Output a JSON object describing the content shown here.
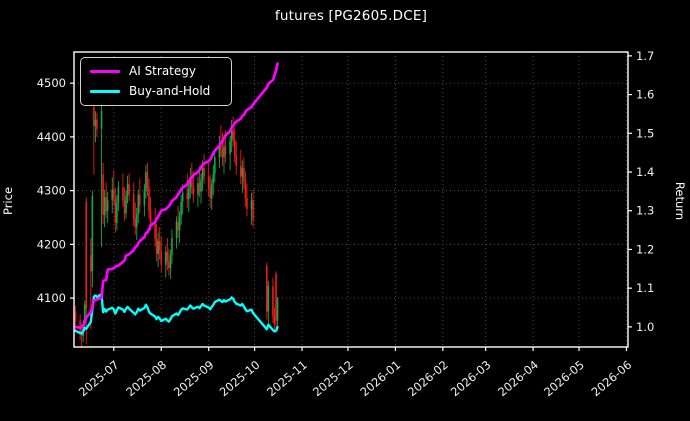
{
  "window": {
    "title": "futures [PG2605.DCE]"
  },
  "chart_data": {
    "type": "candlestick+line",
    "title": "futures [PG2605.DCE]",
    "background": "#000000",
    "grid": true,
    "legend": {
      "position": "upper-left",
      "entries": [
        "AI Strategy",
        "Buy-and-Hold"
      ]
    },
    "colors": {
      "up": "#0cab4e",
      "down": "#f21b1b",
      "ai_strategy": "#ff00ff",
      "buy_and_hold": "#00ffff",
      "axis": "#ffffff",
      "grid": "#5f5f5f",
      "tick_text": "#f0f0f0"
    },
    "left_axis": {
      "label": "Price",
      "min": 4009,
      "max": 4558,
      "ticks": [
        4100,
        4200,
        4300,
        4400,
        4500
      ]
    },
    "right_axis": {
      "label": "Return",
      "min": 0.948,
      "max": 1.71,
      "ticks": [
        1.0,
        1.1,
        1.2,
        1.3,
        1.4,
        1.5,
        1.6,
        1.7
      ]
    },
    "x_axis": {
      "min": "2025-06-05",
      "max": "2026-06-02",
      "tick_dates": [
        "2025-07-01",
        "2025-08-01",
        "2025-09-01",
        "2025-10-01",
        "2025-11-01",
        "2025-12-01",
        "2026-01-01",
        "2026-02-01",
        "2026-03-01",
        "2026-04-01",
        "2026-05-01",
        "2026-06-01"
      ],
      "tick_labels": [
        "2025-07",
        "2025-08",
        "2025-09",
        "2025-10",
        "2025-11",
        "2025-12",
        "2026-01",
        "2026-02",
        "2026-03",
        "2026-04",
        "2026-05",
        "2026-06"
      ]
    },
    "candles": [
      [
        "2025-06-06",
        4075,
        4085,
        4040,
        4058
      ],
      [
        "2025-06-09",
        4058,
        4070,
        4022,
        4034
      ],
      [
        "2025-06-10",
        4034,
        4052,
        4008,
        4030
      ],
      [
        "2025-06-11",
        4030,
        4060,
        4018,
        4052
      ],
      [
        "2025-06-12",
        4052,
        4095,
        4040,
        4088
      ],
      [
        "2025-06-13",
        4280,
        4288,
        4015,
        4080
      ],
      [
        "2025-06-16",
        4180,
        4212,
        4042,
        4150
      ],
      [
        "2025-06-17",
        4150,
        4300,
        4120,
        4290
      ],
      [
        "2025-06-18",
        4455,
        4460,
        4330,
        4420
      ],
      [
        "2025-06-19",
        4420,
        4448,
        4390,
        4432
      ],
      [
        "2025-06-20",
        4432,
        4445,
        4400,
        4415
      ],
      [
        "2025-06-23",
        4415,
        4465,
        4195,
        4448
      ],
      [
        "2025-06-24",
        4330,
        4352,
        4238,
        4255
      ],
      [
        "2025-06-25",
        4255,
        4302,
        4232,
        4288
      ],
      [
        "2025-06-26",
        4288,
        4315,
        4248,
        4262
      ],
      [
        "2025-06-27",
        4262,
        4298,
        4240,
        4282
      ],
      [
        "2025-06-30",
        4282,
        4325,
        4258,
        4302
      ],
      [
        "2025-07-01",
        4302,
        4338,
        4272,
        4286
      ],
      [
        "2025-07-02",
        4286,
        4305,
        4222,
        4240
      ],
      [
        "2025-07-03",
        4240,
        4292,
        4226,
        4278
      ],
      [
        "2025-07-04",
        4278,
        4318,
        4262,
        4306
      ],
      [
        "2025-07-07",
        4306,
        4332,
        4270,
        4282
      ],
      [
        "2025-07-08",
        4282,
        4306,
        4244,
        4258
      ],
      [
        "2025-07-09",
        4258,
        4300,
        4248,
        4290
      ],
      [
        "2025-07-10",
        4290,
        4328,
        4276,
        4312
      ],
      [
        "2025-07-11",
        4312,
        4332,
        4280,
        4294
      ],
      [
        "2025-07-14",
        4294,
        4315,
        4234,
        4248
      ],
      [
        "2025-07-15",
        4248,
        4278,
        4218,
        4232
      ],
      [
        "2025-07-16",
        4232,
        4268,
        4208,
        4256
      ],
      [
        "2025-07-17",
        4256,
        4302,
        4240,
        4292
      ],
      [
        "2025-07-18",
        4292,
        4322,
        4258,
        4272
      ],
      [
        "2025-07-21",
        4272,
        4312,
        4252,
        4300
      ],
      [
        "2025-07-22",
        4300,
        4348,
        4286,
        4334
      ],
      [
        "2025-07-23",
        4334,
        4352,
        4290,
        4306
      ],
      [
        "2025-07-24",
        4306,
        4322,
        4248,
        4262
      ],
      [
        "2025-07-25",
        4262,
        4288,
        4226,
        4240
      ],
      [
        "2025-07-28",
        4240,
        4268,
        4196,
        4210
      ],
      [
        "2025-07-29",
        4210,
        4238,
        4168,
        4182
      ],
      [
        "2025-07-30",
        4182,
        4222,
        4158,
        4206
      ],
      [
        "2025-07-31",
        4206,
        4232,
        4172,
        4188
      ],
      [
        "2025-08-01",
        4188,
        4214,
        4148,
        4162
      ],
      [
        "2025-08-04",
        4162,
        4198,
        4138,
        4186
      ],
      [
        "2025-08-05",
        4186,
        4212,
        4152,
        4168
      ],
      [
        "2025-08-06",
        4168,
        4192,
        4142,
        4156
      ],
      [
        "2025-08-07",
        4156,
        4190,
        4136,
        4180
      ],
      [
        "2025-08-08",
        4180,
        4228,
        4164,
        4212
      ],
      [
        "2025-08-11",
        4212,
        4252,
        4192,
        4242
      ],
      [
        "2025-08-12",
        4242,
        4272,
        4212,
        4226
      ],
      [
        "2025-08-13",
        4226,
        4262,
        4202,
        4252
      ],
      [
        "2025-08-14",
        4252,
        4292,
        4236,
        4280
      ],
      [
        "2025-08-15",
        4280,
        4312,
        4256,
        4296
      ],
      [
        "2025-08-18",
        4296,
        4332,
        4268,
        4284
      ],
      [
        "2025-08-19",
        4284,
        4316,
        4260,
        4304
      ],
      [
        "2025-08-20",
        4304,
        4342,
        4286,
        4326
      ],
      [
        "2025-08-21",
        4326,
        4352,
        4294,
        4308
      ],
      [
        "2025-08-22",
        4308,
        4336,
        4278,
        4292
      ],
      [
        "2025-08-25",
        4292,
        4326,
        4270,
        4314
      ],
      [
        "2025-08-26",
        4314,
        4346,
        4288,
        4298
      ],
      [
        "2025-08-27",
        4298,
        4332,
        4276,
        4320
      ],
      [
        "2025-08-28",
        4320,
        4356,
        4300,
        4342
      ],
      [
        "2025-08-29",
        4342,
        4368,
        4312,
        4326
      ],
      [
        "2025-09-01",
        4326,
        4352,
        4290,
        4304
      ],
      [
        "2025-09-02",
        4304,
        4330,
        4268,
        4286
      ],
      [
        "2025-09-03",
        4286,
        4322,
        4264,
        4312
      ],
      [
        "2025-09-04",
        4312,
        4348,
        4292,
        4332
      ],
      [
        "2025-09-05",
        4332,
        4372,
        4316,
        4362
      ],
      [
        "2025-09-08",
        4362,
        4402,
        4342,
        4388
      ],
      [
        "2025-09-09",
        4388,
        4422,
        4362,
        4376
      ],
      [
        "2025-09-10",
        4376,
        4408,
        4346,
        4362
      ],
      [
        "2025-09-11",
        4362,
        4398,
        4332,
        4382
      ],
      [
        "2025-09-12",
        4382,
        4412,
        4352,
        4368
      ],
      [
        "2025-09-15",
        4368,
        4402,
        4338,
        4392
      ],
      [
        "2025-09-16",
        4392,
        4432,
        4372,
        4412
      ],
      [
        "2025-09-17",
        4412,
        4438,
        4382,
        4396
      ],
      [
        "2025-09-18",
        4396,
        4418,
        4352,
        4366
      ],
      [
        "2025-09-19",
        4366,
        4392,
        4330,
        4346
      ],
      [
        "2025-09-22",
        4346,
        4376,
        4312,
        4326
      ],
      [
        "2025-09-23",
        4326,
        4356,
        4296,
        4342
      ],
      [
        "2025-09-24",
        4342,
        4362,
        4302,
        4316
      ],
      [
        "2025-09-25",
        4316,
        4336,
        4270,
        4286
      ],
      [
        "2025-09-26",
        4286,
        4312,
        4252,
        4266
      ],
      [
        "2025-09-29",
        4266,
        4296,
        4236,
        4282
      ],
      [
        "2025-09-30",
        4282,
        4302,
        4232,
        4246
      ],
      [
        "2025-10-09",
        4160,
        4166,
        4060,
        4075
      ],
      [
        "2025-10-10",
        4075,
        4132,
        4046,
        4122
      ],
      [
        "2025-10-13",
        4122,
        4138,
        4054,
        4066
      ],
      [
        "2025-10-14",
        4066,
        4082,
        4040,
        4052
      ],
      [
        "2025-10-15",
        4145,
        4150,
        4042,
        4058
      ],
      [
        "2025-10-16",
        4058,
        4102,
        4040,
        4098
      ]
    ],
    "series": [
      {
        "name": "AI Strategy",
        "color": "#ff00ff",
        "axis": "return",
        "points": [
          [
            "2025-06-06",
            1.0
          ],
          [
            "2025-06-09",
            0.998
          ],
          [
            "2025-06-10",
            1.0
          ],
          [
            "2025-06-11",
            1.004
          ],
          [
            "2025-06-12",
            1.012
          ],
          [
            "2025-06-13",
            1.024
          ],
          [
            "2025-06-16",
            1.038
          ],
          [
            "2025-06-17",
            1.052
          ],
          [
            "2025-06-18",
            1.068
          ],
          [
            "2025-06-19",
            1.07
          ],
          [
            "2025-06-20",
            1.071
          ],
          [
            "2025-06-23",
            1.075
          ],
          [
            "2025-06-24",
            1.118
          ],
          [
            "2025-06-25",
            1.12
          ],
          [
            "2025-06-26",
            1.121
          ],
          [
            "2025-06-27",
            1.148
          ],
          [
            "2025-06-30",
            1.15
          ],
          [
            "2025-07-01",
            1.152
          ],
          [
            "2025-07-02",
            1.155
          ],
          [
            "2025-07-03",
            1.158
          ],
          [
            "2025-07-04",
            1.158
          ],
          [
            "2025-07-07",
            1.168
          ],
          [
            "2025-07-08",
            1.172
          ],
          [
            "2025-07-09",
            1.184
          ],
          [
            "2025-07-10",
            1.186
          ],
          [
            "2025-07-11",
            1.188
          ],
          [
            "2025-07-14",
            1.198
          ],
          [
            "2025-07-15",
            1.206
          ],
          [
            "2025-07-16",
            1.208
          ],
          [
            "2025-07-17",
            1.215
          ],
          [
            "2025-07-18",
            1.222
          ],
          [
            "2025-07-21",
            1.232
          ],
          [
            "2025-07-22",
            1.242
          ],
          [
            "2025-07-23",
            1.244
          ],
          [
            "2025-07-24",
            1.252
          ],
          [
            "2025-07-25",
            1.262
          ],
          [
            "2025-07-28",
            1.27
          ],
          [
            "2025-07-29",
            1.278
          ],
          [
            "2025-07-30",
            1.285
          ],
          [
            "2025-07-31",
            1.292
          ],
          [
            "2025-08-01",
            1.3
          ],
          [
            "2025-08-04",
            1.304
          ],
          [
            "2025-08-05",
            1.308
          ],
          [
            "2025-08-06",
            1.312
          ],
          [
            "2025-08-07",
            1.318
          ],
          [
            "2025-08-08",
            1.325
          ],
          [
            "2025-08-11",
            1.335
          ],
          [
            "2025-08-12",
            1.342
          ],
          [
            "2025-08-13",
            1.348
          ],
          [
            "2025-08-14",
            1.355
          ],
          [
            "2025-08-15",
            1.36
          ],
          [
            "2025-08-18",
            1.368
          ],
          [
            "2025-08-19",
            1.375
          ],
          [
            "2025-08-20",
            1.382
          ],
          [
            "2025-08-21",
            1.385
          ],
          [
            "2025-08-22",
            1.392
          ],
          [
            "2025-08-25",
            1.4
          ],
          [
            "2025-08-26",
            1.405
          ],
          [
            "2025-08-27",
            1.412
          ],
          [
            "2025-08-28",
            1.418
          ],
          [
            "2025-08-29",
            1.422
          ],
          [
            "2025-09-01",
            1.428
          ],
          [
            "2025-09-02",
            1.432
          ],
          [
            "2025-09-03",
            1.44
          ],
          [
            "2025-09-04",
            1.448
          ],
          [
            "2025-09-05",
            1.455
          ],
          [
            "2025-09-08",
            1.468
          ],
          [
            "2025-09-09",
            1.475
          ],
          [
            "2025-09-10",
            1.48
          ],
          [
            "2025-09-11",
            1.488
          ],
          [
            "2025-09-12",
            1.495
          ],
          [
            "2025-09-15",
            1.505
          ],
          [
            "2025-09-16",
            1.515
          ],
          [
            "2025-09-17",
            1.52
          ],
          [
            "2025-09-18",
            1.525
          ],
          [
            "2025-09-19",
            1.53
          ],
          [
            "2025-09-22",
            1.538
          ],
          [
            "2025-09-23",
            1.545
          ],
          [
            "2025-09-24",
            1.548
          ],
          [
            "2025-09-25",
            1.555
          ],
          [
            "2025-09-26",
            1.56
          ],
          [
            "2025-09-29",
            1.568
          ],
          [
            "2025-09-30",
            1.575
          ],
          [
            "2025-10-09",
            1.618
          ],
          [
            "2025-10-10",
            1.628
          ],
          [
            "2025-10-13",
            1.638
          ],
          [
            "2025-10-14",
            1.65
          ],
          [
            "2025-10-15",
            1.662
          ],
          [
            "2025-10-16",
            1.68
          ]
        ]
      },
      {
        "name": "Buy-and-Hold",
        "color": "#00ffff",
        "axis": "return",
        "derived_from": "candle closes divided by base",
        "base_price": 4100
      }
    ]
  }
}
